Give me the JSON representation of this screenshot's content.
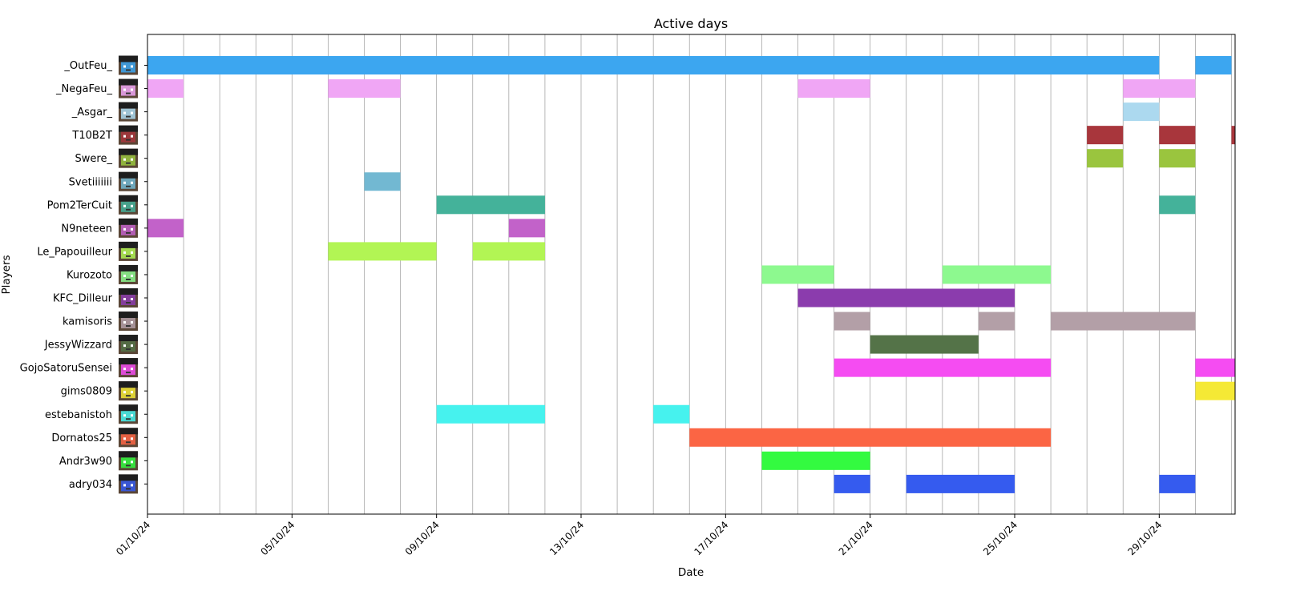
{
  "chart_data": {
    "type": "timeline",
    "title": "Active days",
    "xlabel": "Date",
    "ylabel": "Players",
    "x_range": [
      "01/10/24",
      "31/10/24"
    ],
    "x_ticks": [
      "01/10/24",
      "05/10/24",
      "09/10/24",
      "13/10/24",
      "17/10/24",
      "21/10/24",
      "25/10/24",
      "29/10/24"
    ],
    "grid": "vertical, daily",
    "players": [
      {
        "name": "_OutFeu_",
        "color": "#3ca6f0",
        "avatar": "fire-skin-avatar",
        "active": [
          [
            1,
            28
          ],
          [
            30,
            30
          ]
        ]
      },
      {
        "name": "_NegaFeu_",
        "color": "#f0a6f5",
        "avatar": "cyan-skin-avatar",
        "active": [
          [
            1,
            1
          ],
          [
            6,
            7
          ],
          [
            19,
            20
          ],
          [
            28,
            29
          ]
        ]
      },
      {
        "name": "_Asgar_",
        "color": "#acd9ef",
        "avatar": "dark-skin-avatar",
        "active": [
          [
            28,
            28
          ]
        ]
      },
      {
        "name": "T10B2T",
        "color": "#a8363c",
        "avatar": "white-hair-avatar",
        "active": [
          [
            27,
            27
          ],
          [
            29,
            29
          ],
          [
            31,
            31
          ]
        ]
      },
      {
        "name": "Swere_",
        "color": "#9ac53e",
        "avatar": "black-mask-avatar",
        "active": [
          [
            27,
            27
          ],
          [
            29,
            29
          ]
        ]
      },
      {
        "name": "Svetiiiiiii",
        "color": "#72b8d2",
        "avatar": "brown-skin-avatar",
        "active": [
          [
            7,
            7
          ]
        ]
      },
      {
        "name": "Pom2TerCuit",
        "color": "#44b29a",
        "avatar": "green-skin-avatar",
        "active": [
          [
            9,
            11
          ],
          [
            29,
            29
          ]
        ]
      },
      {
        "name": "N9neteen",
        "color": "#c262c9",
        "avatar": "dark-hair-avatar",
        "active": [
          [
            1,
            1
          ],
          [
            11,
            11
          ]
        ]
      },
      {
        "name": "Le_Papouilleur",
        "color": "#b2f554",
        "avatar": "orange-skin-avatar",
        "active": [
          [
            6,
            8
          ],
          [
            10,
            11
          ]
        ]
      },
      {
        "name": "Kurozoto",
        "color": "#8df98f",
        "avatar": "pale-skin-avatar",
        "active": [
          [
            18,
            19
          ],
          [
            23,
            25
          ]
        ]
      },
      {
        "name": "KFC_Dilleur",
        "color": "#8b3cad",
        "avatar": "tan-skin-avatar",
        "active": [
          [
            19,
            24
          ]
        ]
      },
      {
        "name": "kamisoris",
        "color": "#b39fa7",
        "avatar": "brown-hair-avatar",
        "active": [
          [
            20,
            20
          ],
          [
            24,
            24
          ],
          [
            26,
            29
          ]
        ]
      },
      {
        "name": "JessyWizzard",
        "color": "#547348",
        "avatar": "wizard-skin-avatar",
        "active": [
          [
            21,
            23
          ]
        ]
      },
      {
        "name": "GojoSatoruSensei",
        "color": "#f54cf2",
        "avatar": "white-skin-avatar",
        "active": [
          [
            20,
            25
          ],
          [
            30,
            31
          ]
        ]
      },
      {
        "name": "gims0809",
        "color": "#f5e935",
        "avatar": "diamond-skin-avatar",
        "active": [
          [
            30,
            31
          ]
        ]
      },
      {
        "name": "estebanistoh",
        "color": "#46f2ee",
        "avatar": "beige-skin-avatar",
        "active": [
          [
            9,
            11
          ],
          [
            15,
            15
          ]
        ]
      },
      {
        "name": "Dornatos25",
        "color": "#fb6544",
        "avatar": "orange-hair-avatar",
        "active": [
          [
            16,
            25
          ]
        ]
      },
      {
        "name": "Andr3w90",
        "color": "#33fa40",
        "avatar": "light-skin-avatar",
        "active": [
          [
            18,
            20
          ]
        ]
      },
      {
        "name": "adry034",
        "color": "#355bef",
        "avatar": "colorful-skin-avatar",
        "active": [
          [
            20,
            20
          ],
          [
            22,
            24
          ],
          [
            29,
            29
          ]
        ]
      }
    ]
  }
}
